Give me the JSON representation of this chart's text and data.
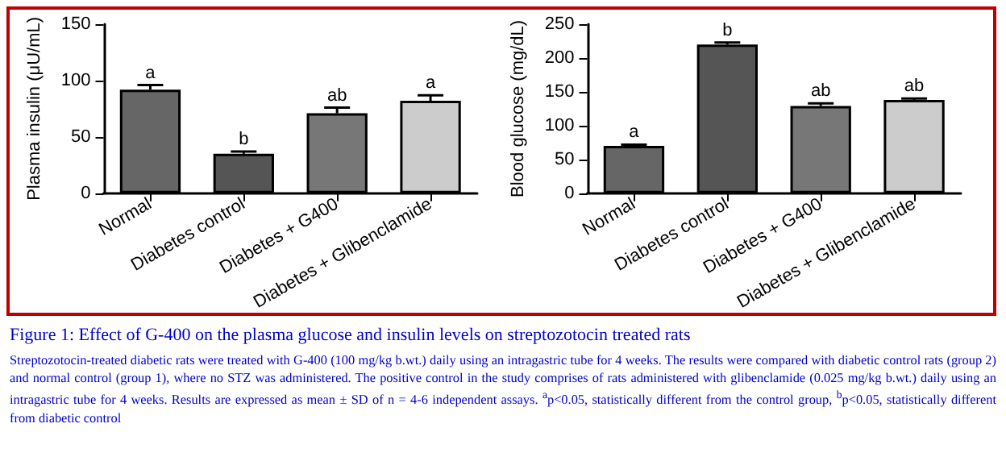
{
  "chart_data": [
    {
      "type": "bar",
      "ylabel": "Plasma insulin (μU/mL)",
      "categories": [
        "Normal",
        "Diabetes control",
        "Diabetes + G400",
        "Diabetes + Glibenclamide"
      ],
      "values": [
        92,
        35,
        71,
        82
      ],
      "errors": [
        4,
        2,
        5,
        5
      ],
      "value_labels": [
        "a",
        "b",
        "ab",
        "a"
      ],
      "colors": [
        "#666666",
        "#555555",
        "#777777",
        "#cccccc"
      ],
      "ylim": [
        0,
        150
      ],
      "yticks": [
        0,
        50,
        100,
        150
      ]
    },
    {
      "type": "bar",
      "ylabel": "Blood glucose (mg/dL)",
      "categories": [
        "Normal",
        "Diabetes control",
        "Diabetes + G400",
        "Diabetes + Glibenclamide"
      ],
      "values": [
        70,
        220,
        129,
        138
      ],
      "errors": [
        2,
        3,
        4,
        2
      ],
      "value_labels": [
        "a",
        "b",
        "ab",
        "ab"
      ],
      "colors": [
        "#666666",
        "#555555",
        "#777777",
        "#cccccc"
      ],
      "ylim": [
        0,
        250
      ],
      "yticks": [
        0,
        50,
        100,
        150,
        200,
        250
      ],
      "annotations": [
        "Figure 1: Effect of G-400 on the plasma glucose and insulin levels on streptozotocin treated rats",
        "Streptozotocin-treated diabetic rats were treated with G-400 (100 mg/kg b.wt.) daily using an intragastric tube for 4 weeks. The results were compared with diabetic control rats (group 2) and normal control (group 1), where no STZ was administered. The positive control in the study comprises of rats administered with glibenclamide (0.025 mg/kg b.wt.) daily using an intragastric tube for 4 weeks.  Results are expressed as mean ± SD of n = 4-6 independent assays. $^{a}$p<0.05, statistically different from the control group, $^{b}$p<0.05, statistically different from diabetic control"
      ]
    }
  ]
}
